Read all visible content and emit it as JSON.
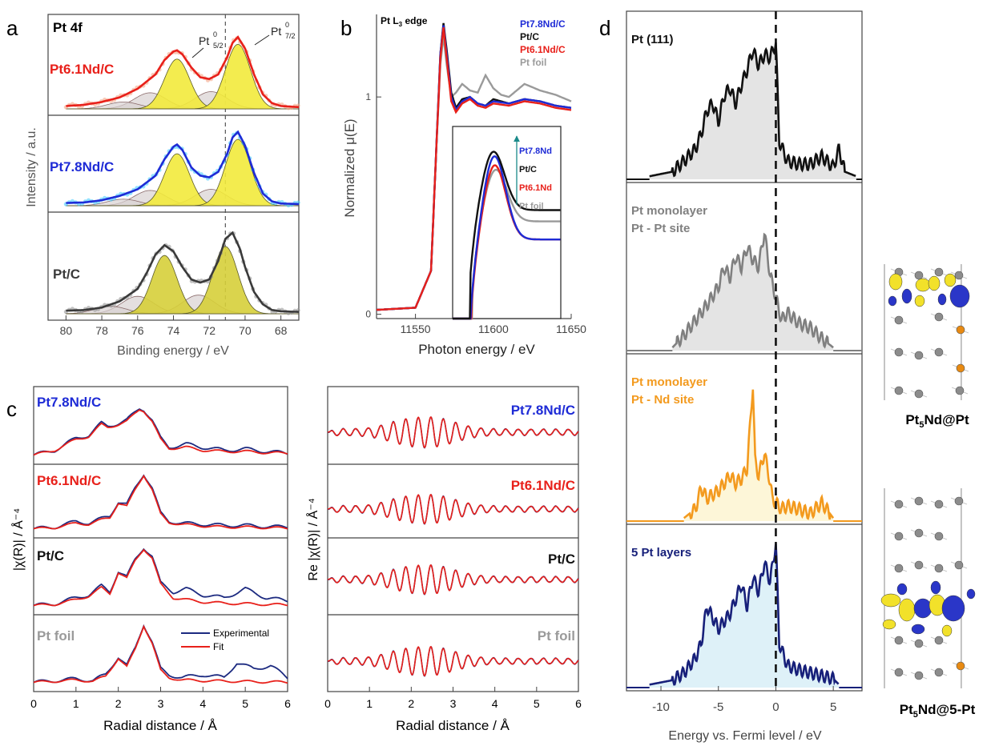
{
  "panels": {
    "a": "a",
    "b": "b",
    "c": "c",
    "d": "d"
  },
  "colors": {
    "pt61": "#e8201a",
    "pt78": "#1e2bd6",
    "ptc": "#111111",
    "foil": "#9a9a9a",
    "ptc_xps": "#3a3a3a",
    "fit_red": "#e8201a",
    "exp_blue": "#1c2a80",
    "yellow": "#f2ea3c",
    "grey_fill": "#d8d2d2",
    "dos_black": "#111111",
    "dos_grey": "#808080",
    "dos_orange": "#f39a1e",
    "dos_navy": "#17207a",
    "fill_grey": "#e4e4e4",
    "fill_cream": "#fdf6d8",
    "fill_blue": "#def1f8"
  },
  "texts": {
    "pt4f": "Pt 4f",
    "pt52": "Pt",
    "pt52_sup": "0",
    "pt52_sub": "5/2",
    "pt72": "Pt",
    "pt72_sup": "0",
    "pt72_sub": "7/2",
    "a_label_61": "Pt6.1Nd/C",
    "a_label_78": "Pt7.8Nd/C",
    "a_label_ptc": "Pt/C",
    "b_edge": "Pt L3 edge",
    "b_legend": [
      "Pt7.8Nd/C",
      "Pt/C",
      "Pt6.1Nd/C",
      "Pt foil"
    ],
    "b_inset_legend": [
      "Pt7.8Nd",
      "Pt/C",
      "Pt6.1Nd",
      "Pt foil"
    ],
    "c_labels": [
      "Pt7.8Nd/C",
      "Pt6.1Nd/C",
      "Pt/C",
      "Pt foil"
    ],
    "c_legend_exp": "Experimental",
    "c_legend_fit": "Fit",
    "d_labels": [
      [
        "Pt (111)"
      ],
      [
        "Pt monolayer",
        "Pt - Pt site"
      ],
      [
        "Pt monolayer",
        "Pt - Nd site"
      ],
      [
        "5 Pt layers"
      ]
    ],
    "struct1": "Pt5Nd@Pt",
    "struct2": "Pt5Nd@5-Pt"
  },
  "chart_data": [
    {
      "id": "a",
      "type": "line",
      "title": "Pt 4f",
      "xlabel": "Binding energy / eV",
      "ylabel": "Intensity / a.u.",
      "xlim": [
        81,
        67
      ],
      "xticks": [
        80,
        78,
        76,
        74,
        72,
        70,
        68
      ],
      "reference_line_x": 71.1,
      "series": [
        {
          "name": "Pt6.1Nd/C",
          "x": [
            80,
            79,
            78,
            77,
            76,
            75,
            74.5,
            74,
            73.8,
            73.5,
            73,
            72.5,
            72,
            71.5,
            71,
            70.7,
            70.4,
            70,
            69.5,
            69,
            68.5,
            68,
            67
          ],
          "y": [
            0.05,
            0.07,
            0.12,
            0.2,
            0.35,
            0.6,
            0.85,
            1.0,
            1.02,
            0.95,
            0.72,
            0.55,
            0.52,
            0.6,
            0.9,
            1.15,
            1.25,
            1.05,
            0.6,
            0.25,
            0.1,
            0.05,
            0.03
          ]
        },
        {
          "name": "Pt7.8Nd/C",
          "x": [
            80,
            79,
            78,
            77,
            76,
            75,
            74.5,
            74,
            73.8,
            73.5,
            73,
            72.5,
            72,
            71.5,
            71,
            70.7,
            70.4,
            70,
            69.5,
            69,
            68.5,
            68,
            67
          ],
          "y": [
            0.05,
            0.06,
            0.1,
            0.18,
            0.3,
            0.55,
            0.85,
            1.08,
            1.12,
            1.02,
            0.7,
            0.55,
            0.52,
            0.62,
            0.95,
            1.25,
            1.35,
            1.1,
            0.6,
            0.22,
            0.08,
            0.04,
            0.03
          ]
        },
        {
          "name": "Pt/C",
          "x": [
            80,
            79,
            78,
            77,
            76,
            75.5,
            75,
            74.5,
            74,
            73.5,
            73,
            72.5,
            72,
            71.5,
            71.1,
            70.7,
            70.3,
            70,
            69.5,
            69,
            68.5,
            68,
            67
          ],
          "y": [
            0.05,
            0.06,
            0.1,
            0.2,
            0.4,
            0.65,
            0.95,
            1.1,
            1.0,
            0.75,
            0.55,
            0.5,
            0.55,
            0.85,
            1.2,
            1.3,
            1.05,
            0.75,
            0.35,
            0.15,
            0.06,
            0.04,
            0.03
          ]
        }
      ]
    },
    {
      "id": "b",
      "type": "line",
      "title": "Pt L3 edge",
      "xlabel": "Photon energy / eV",
      "ylabel": "Normalized μ(E)",
      "xlim": [
        11525,
        11650
      ],
      "ylim": [
        -0.02,
        1.38
      ],
      "xticks": [
        11550,
        11600,
        11650
      ],
      "yticks": [
        0,
        1
      ],
      "series": [
        {
          "name": "Pt7.8Nd/C",
          "x": [
            11525,
            11550,
            11560,
            11563,
            11566,
            11568,
            11570,
            11573,
            11576,
            11580,
            11585,
            11590,
            11595,
            11600,
            11610,
            11620,
            11630,
            11640,
            11650
          ],
          "y": [
            0.02,
            0.03,
            0.2,
            0.7,
            1.2,
            1.33,
            1.2,
            1.0,
            0.94,
            0.98,
            1.0,
            0.97,
            0.96,
            0.98,
            0.97,
            0.99,
            0.98,
            0.96,
            0.95
          ]
        },
        {
          "name": "Pt/C",
          "x": [
            11525,
            11550,
            11560,
            11563,
            11566,
            11568,
            11570,
            11573,
            11576,
            11580,
            11585,
            11590,
            11595,
            11600,
            11610,
            11620,
            11630,
            11640,
            11650
          ],
          "y": [
            0.02,
            0.03,
            0.2,
            0.7,
            1.2,
            1.34,
            1.22,
            1.02,
            0.95,
            0.99,
            1.0,
            0.97,
            0.96,
            0.99,
            0.97,
            0.99,
            0.98,
            0.96,
            0.95
          ]
        },
        {
          "name": "Pt6.1Nd/C",
          "x": [
            11525,
            11550,
            11560,
            11563,
            11566,
            11568,
            11570,
            11573,
            11576,
            11580,
            11585,
            11590,
            11595,
            11600,
            11610,
            11620,
            11630,
            11640,
            11650
          ],
          "y": [
            0.02,
            0.03,
            0.2,
            0.7,
            1.18,
            1.32,
            1.18,
            0.98,
            0.93,
            0.97,
            0.99,
            0.96,
            0.95,
            0.97,
            0.96,
            0.98,
            0.97,
            0.95,
            0.94
          ]
        },
        {
          "name": "Pt foil",
          "x": [
            11525,
            11550,
            11560,
            11563,
            11566,
            11568,
            11570,
            11573,
            11576,
            11580,
            11585,
            11590,
            11595,
            11600,
            11605,
            11610,
            11620,
            11630,
            11640,
            11650
          ],
          "y": [
            0.02,
            0.03,
            0.2,
            0.7,
            1.15,
            1.28,
            1.15,
            1.0,
            1.02,
            1.06,
            1.03,
            1.02,
            1.1,
            1.04,
            1.01,
            1.0,
            1.06,
            1.03,
            1.01,
            0.98
          ]
        }
      ]
    },
    {
      "id": "c_left",
      "type": "line",
      "xlabel": "Radial distance / Å",
      "ylabel": "|χ(R)| / Å⁻⁴",
      "xlim": [
        0,
        6
      ],
      "xticks": [
        0,
        1,
        2,
        3,
        4,
        5,
        6
      ],
      "legend": [
        "Experimental",
        "Fit"
      ],
      "subplots": [
        {
          "label": "Pt7.8Nd/C",
          "x": [
            0,
            0.5,
            1,
            1.3,
            1.6,
            1.75,
            2,
            2.2,
            2.5,
            2.6,
            2.8,
            3.0,
            3.2,
            3.6,
            4,
            4.5,
            5,
            5.5,
            6
          ],
          "experimental": [
            0.02,
            0.1,
            0.3,
            0.35,
            0.55,
            0.5,
            0.55,
            0.6,
            0.8,
            0.78,
            0.6,
            0.3,
            0.15,
            0.2,
            0.15,
            0.1,
            0.12,
            0.08,
            0.05
          ],
          "fit": [
            0.02,
            0.1,
            0.28,
            0.33,
            0.53,
            0.48,
            0.53,
            0.58,
            0.78,
            0.76,
            0.58,
            0.28,
            0.13,
            0.15,
            0.1,
            0.08,
            0.08,
            0.06,
            0.05
          ]
        },
        {
          "label": "Pt6.1Nd/C",
          "x": [
            0,
            0.5,
            1,
            1.3,
            1.6,
            1.8,
            2.0,
            2.2,
            2.4,
            2.6,
            2.8,
            3.0,
            3.2,
            3.5,
            4,
            4.5,
            5,
            5.5,
            6
          ],
          "experimental": [
            0.02,
            0.05,
            0.15,
            0.12,
            0.2,
            0.25,
            0.5,
            0.45,
            0.75,
            1.0,
            0.75,
            0.3,
            0.15,
            0.12,
            0.1,
            0.08,
            0.08,
            0.06,
            0.05
          ],
          "fit": [
            0.02,
            0.04,
            0.12,
            0.1,
            0.18,
            0.22,
            0.48,
            0.42,
            0.72,
            0.98,
            0.72,
            0.28,
            0.13,
            0.1,
            0.07,
            0.05,
            0.05,
            0.04,
            0.03
          ]
        },
        {
          "label": "Pt/C",
          "x": [
            0,
            0.5,
            1,
            1.3,
            1.6,
            1.8,
            2.0,
            2.2,
            2.4,
            2.6,
            2.8,
            3.0,
            3.3,
            3.6,
            4.0,
            4.5,
            5.0,
            5.5,
            6
          ],
          "experimental": [
            0.02,
            0.05,
            0.15,
            0.2,
            0.35,
            0.25,
            0.6,
            0.5,
            0.8,
            1.0,
            0.85,
            0.4,
            0.25,
            0.3,
            0.2,
            0.15,
            0.3,
            0.15,
            0.1
          ],
          "fit": [
            0.02,
            0.04,
            0.12,
            0.18,
            0.32,
            0.22,
            0.58,
            0.48,
            0.78,
            0.98,
            0.82,
            0.38,
            0.15,
            0.12,
            0.08,
            0.06,
            0.05,
            0.04,
            0.03
          ]
        },
        {
          "label": "Pt foil",
          "x": [
            0,
            0.5,
            1,
            1.4,
            1.7,
            2.0,
            2.2,
            2.4,
            2.6,
            2.8,
            3.0,
            3.2,
            3.5,
            4,
            4.5,
            4.8,
            5.2,
            5.6,
            6
          ],
          "experimental": [
            0.02,
            0.05,
            0.08,
            0.05,
            0.15,
            0.45,
            0.3,
            0.6,
            1.0,
            0.7,
            0.25,
            0.15,
            0.1,
            0.15,
            0.1,
            0.35,
            0.25,
            0.3,
            0.1
          ],
          "fit": [
            0.02,
            0.04,
            0.06,
            0.04,
            0.12,
            0.43,
            0.28,
            0.58,
            0.98,
            0.68,
            0.22,
            0.1,
            0.06,
            0.05,
            0.04,
            0.04,
            0.03,
            0.03,
            0.02
          ]
        }
      ]
    },
    {
      "id": "c_right",
      "type": "line",
      "xlabel": "Radial distance / Å",
      "ylabel": "Re |χ(R)| / Å⁻⁴",
      "xlim": [
        0,
        6
      ],
      "xticks": [
        0,
        1,
        2,
        3,
        4,
        5,
        6
      ],
      "subplots": [
        {
          "label": "Pt7.8Nd/C",
          "amplitude": 0.9
        },
        {
          "label": "Pt6.1Nd/C",
          "amplitude": 0.9
        },
        {
          "label": "Pt/C",
          "amplitude": 0.9
        },
        {
          "label": "Pt foil",
          "amplitude": 0.9
        }
      ]
    },
    {
      "id": "d",
      "type": "area",
      "xlabel": "Energy vs. Fermi level / eV",
      "xlim": [
        -13,
        7.5
      ],
      "xticks": [
        -10,
        -5,
        0,
        5
      ],
      "fermi_line_x": 0,
      "subplots": [
        {
          "label": [
            "Pt (111)"
          ],
          "x": [
            -11,
            -9,
            -8,
            -7,
            -6.5,
            -6,
            -5.5,
            -5,
            -4.5,
            -4,
            -3.5,
            -3,
            -2.5,
            -2,
            -1.5,
            -1,
            -0.5,
            0,
            0.3,
            1,
            2,
            3,
            4,
            5,
            5.5,
            6,
            7
          ],
          "y": [
            0.02,
            0.05,
            0.12,
            0.2,
            0.3,
            0.45,
            0.5,
            0.38,
            0.55,
            0.6,
            0.5,
            0.62,
            0.72,
            0.85,
            0.75,
            0.82,
            0.8,
            0.9,
            0.25,
            0.12,
            0.1,
            0.1,
            0.15,
            0.08,
            0.2,
            0.05,
            0.02
          ]
        },
        {
          "label": [
            "Pt monolayer",
            "Pt - Pt site"
          ],
          "x": [
            -9,
            -8,
            -7,
            -6,
            -5,
            -4.5,
            -4,
            -3.5,
            -3,
            -2.5,
            -2,
            -1.5,
            -1,
            -0.5,
            0,
            0.5,
            1,
            2,
            3,
            4,
            5
          ],
          "y": [
            0.02,
            0.1,
            0.2,
            0.3,
            0.42,
            0.55,
            0.48,
            0.62,
            0.55,
            0.68,
            0.6,
            0.55,
            0.78,
            0.5,
            0.35,
            0.2,
            0.25,
            0.18,
            0.15,
            0.08,
            0.02
          ]
        },
        {
          "label": [
            "Pt monolayer",
            "Pt - Nd site"
          ],
          "x": [
            -8,
            -7,
            -6.5,
            -6,
            -5,
            -4,
            -3.5,
            -3,
            -2.5,
            -2,
            -1.8,
            -1.5,
            -1,
            -0.6,
            -0.3,
            0,
            0.5,
            1,
            2,
            3,
            4,
            5
          ],
          "y": [
            0.02,
            0.08,
            0.22,
            0.15,
            0.2,
            0.3,
            0.25,
            0.28,
            0.35,
            0.9,
            0.4,
            0.3,
            0.45,
            0.3,
            0.15,
            0.12,
            0.08,
            0.1,
            0.08,
            0.05,
            0.12,
            0.02
          ]
        },
        {
          "label": [
            "5 Pt layers"
          ],
          "x": [
            -11,
            -9,
            -8,
            -7,
            -6.5,
            -6,
            -5,
            -4,
            -3.5,
            -3,
            -2.5,
            -2,
            -1.5,
            -1,
            -0.5,
            0,
            0.3,
            1,
            2,
            3,
            4,
            5,
            5.5
          ],
          "y": [
            0.02,
            0.05,
            0.1,
            0.2,
            0.3,
            0.55,
            0.4,
            0.5,
            0.6,
            0.7,
            0.55,
            0.75,
            0.65,
            0.85,
            0.72,
            0.98,
            0.3,
            0.15,
            0.12,
            0.1,
            0.08,
            0.06,
            0.02
          ]
        }
      ]
    }
  ]
}
